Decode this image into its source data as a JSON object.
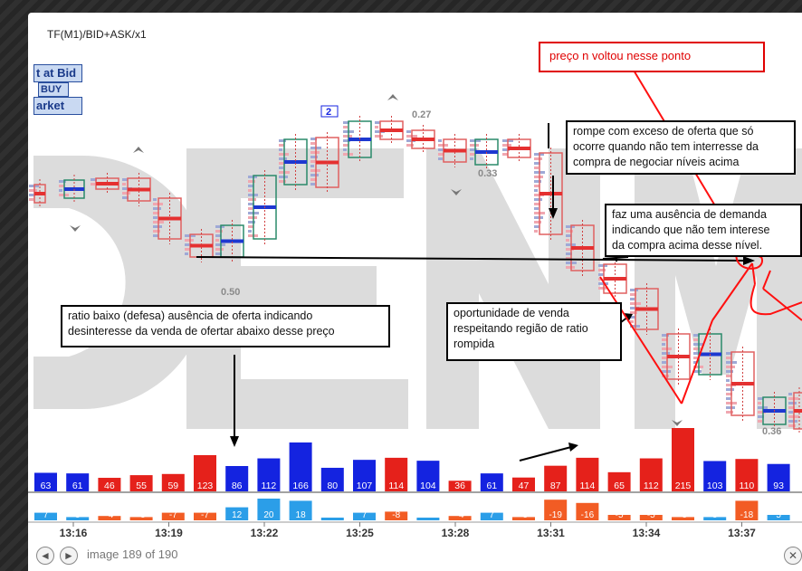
{
  "window": {
    "title": "TF(M1)/BID+ASK/x1"
  },
  "legend": {
    "items": [
      "t at Bid",
      "BUY",
      "arket"
    ]
  },
  "annotations": {
    "red_note": "preço n voltou nesse ponto",
    "note1": [
      "rompe com exceso de oferta que só",
      "ocorre quando não tem interresse da",
      "compra de negociar níveis acima"
    ],
    "note2": [
      "faz uma ausência de demanda",
      "indicando que não tem interese",
      "da compra acima desse nível."
    ],
    "note3": [
      "ratio baixo (defesa) ausência de oferta indicando",
      "desinteresse da venda de ofertar abaixo desse preço"
    ],
    "note4": [
      "oportunidade de venda",
      "respeitando  região de ratio",
      "rompida"
    ]
  },
  "chart_labels": {
    "box_number": "2",
    "ratios": [
      "0.27",
      "0.33",
      "0.50",
      "0.36"
    ]
  },
  "chart_data": {
    "type": "bar",
    "volume_values": [
      63,
      61,
      46,
      55,
      59,
      123,
      86,
      112,
      166,
      80,
      107,
      114,
      104,
      36,
      61,
      47,
      87,
      114,
      65,
      112,
      215,
      103,
      110,
      93
    ],
    "volume_colors": [
      "blue",
      "blue",
      "red",
      "red",
      "red",
      "red",
      "blue",
      "blue",
      "blue",
      "blue",
      "blue",
      "red",
      "blue",
      "red",
      "blue",
      "red",
      "red",
      "red",
      "red",
      "red",
      "red",
      "blue",
      "red",
      "blue"
    ],
    "delta_values": [
      "7",
      "3",
      "-4",
      "-3",
      "-7",
      "-7",
      "12",
      "20",
      "18",
      "2",
      "7",
      "-8",
      "0",
      "-4",
      "7",
      "-3",
      "-19",
      "-16",
      "-5",
      "-5",
      "-3",
      "3",
      "-18",
      "5"
    ],
    "time_labels": [
      "13:16",
      "13:19",
      "13:22",
      "13:25",
      "13:28",
      "13:31",
      "13:34",
      "13:37"
    ]
  },
  "footer": {
    "counter": "image 189 of 190",
    "prev": "◄",
    "next": "►",
    "close": "✕"
  },
  "colors": {
    "bid_blue": "#1423e0",
    "ask_red": "#e5211b",
    "light_blue": "#2b9ee8",
    "orange": "#f25c24"
  }
}
